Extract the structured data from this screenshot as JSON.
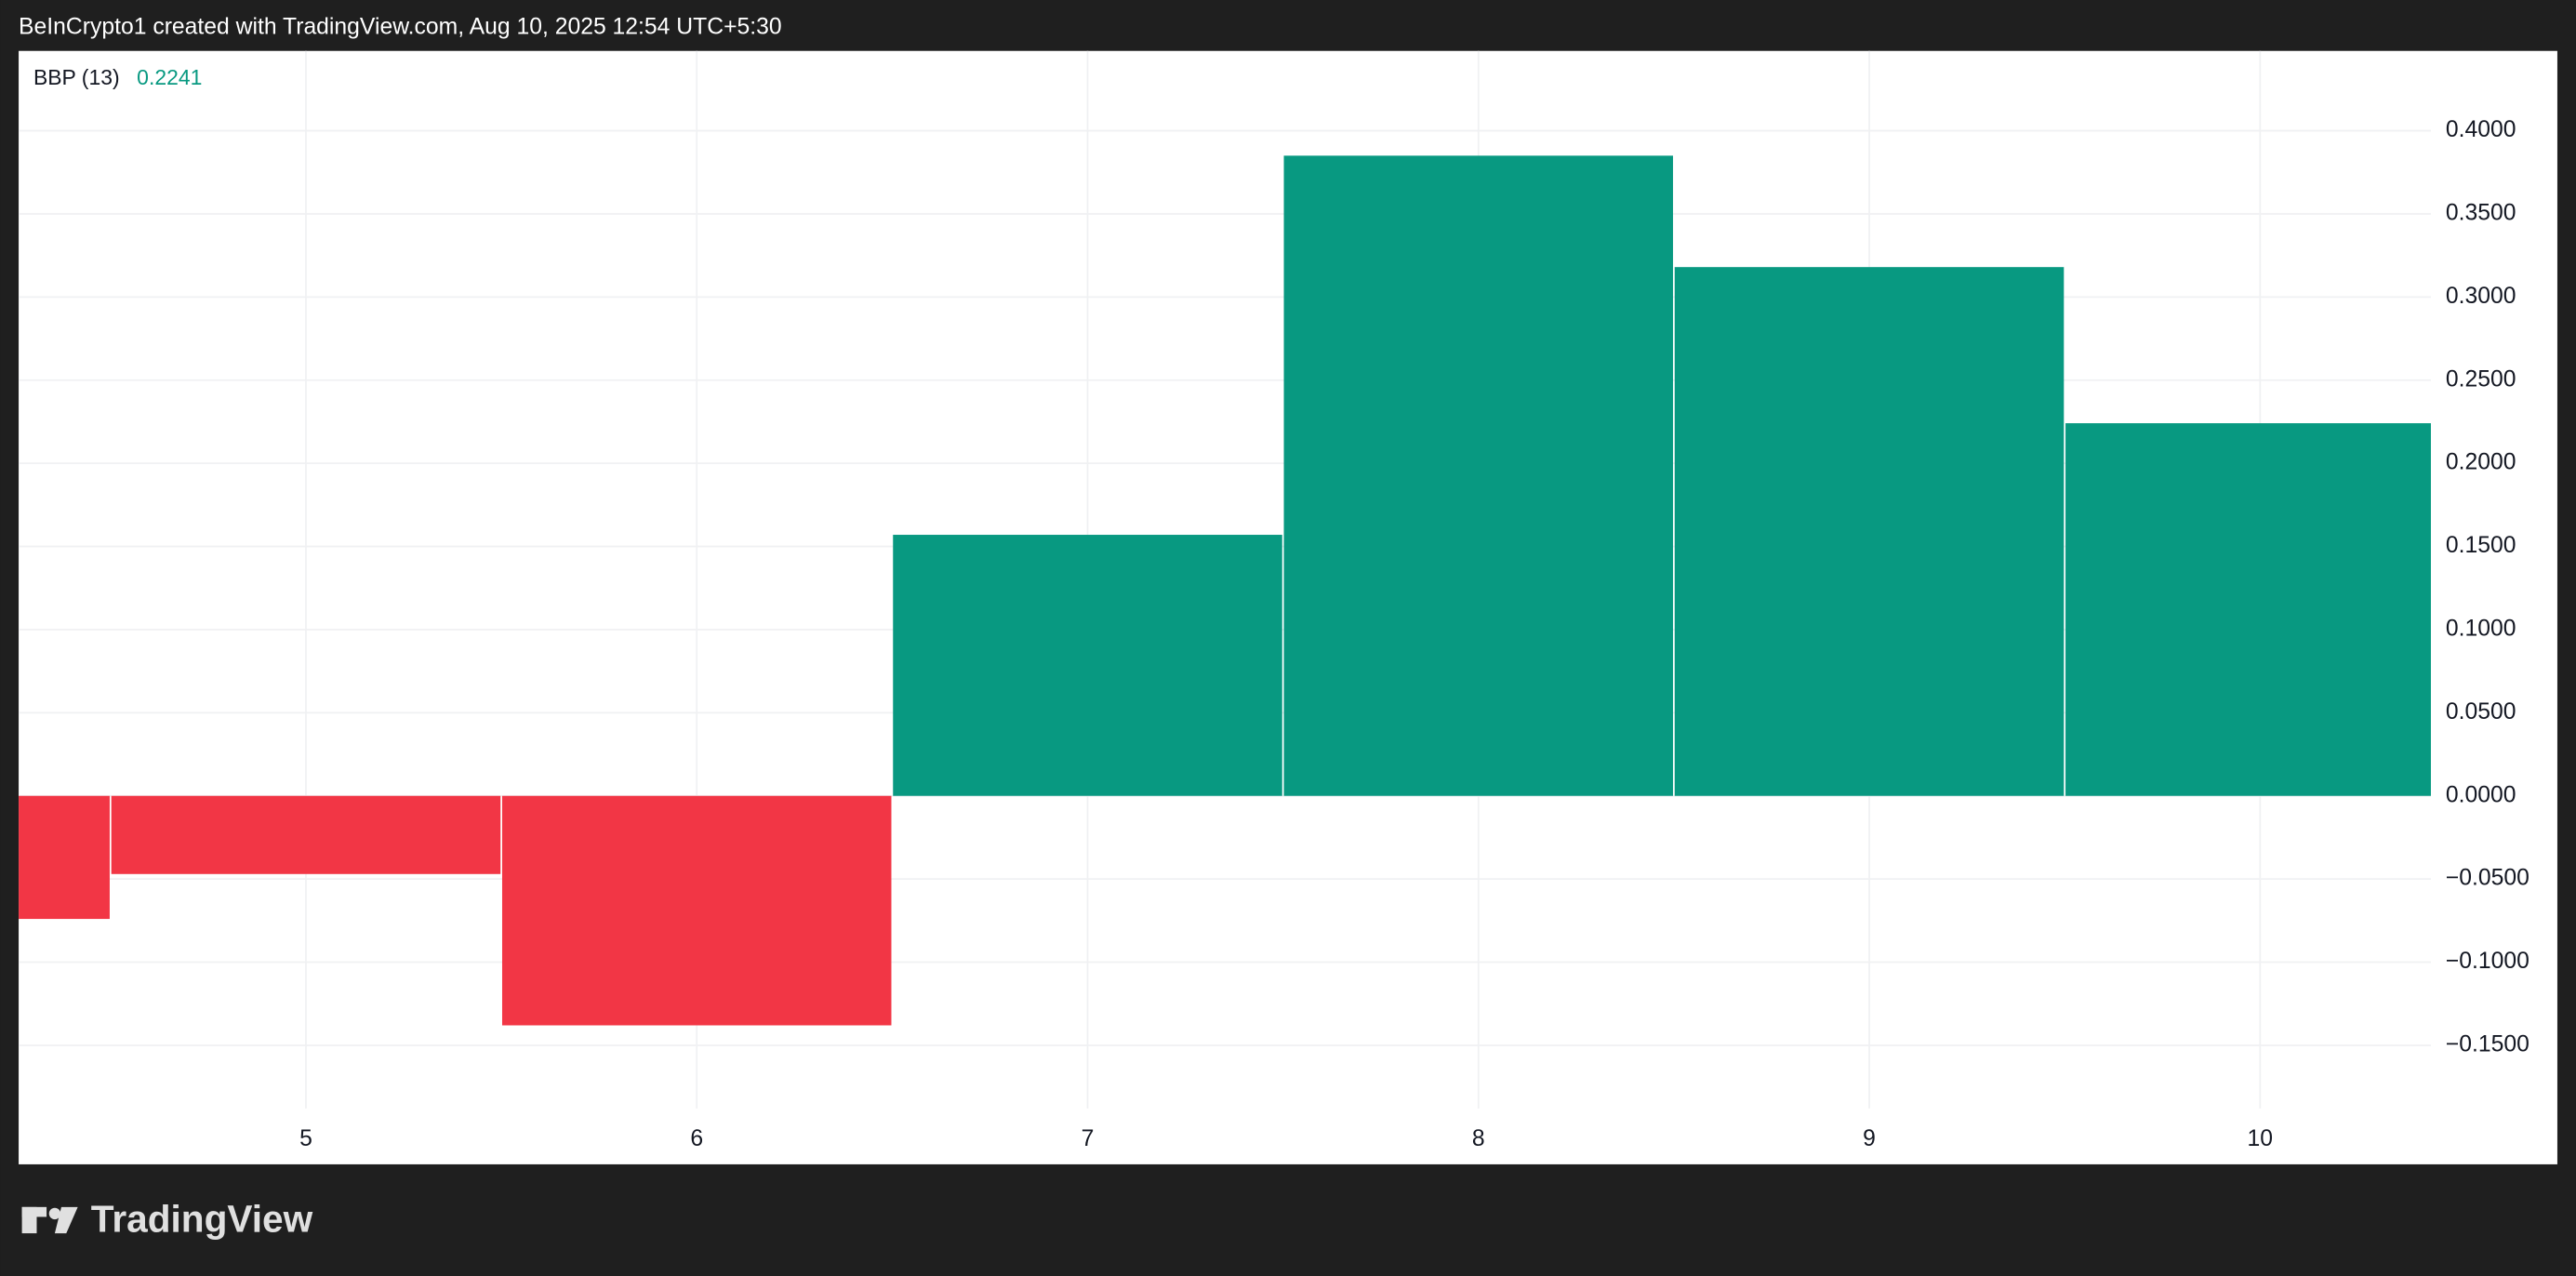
{
  "header": "BeInCrypto1 created with TradingView.com, Aug 10, 2025 12:54 UTC+5:30",
  "footer_logo": "TradingView",
  "chart_data": {
    "type": "bar",
    "x": [
      4,
      5,
      6,
      7,
      8,
      9,
      10
    ],
    "series": [
      {
        "name": "BBP (13)",
        "values": [
          -0.074,
          -0.047,
          -0.138,
          0.157,
          0.385,
          0.318,
          0.2241
        ]
      }
    ],
    "colors": {
      "positive": "#089981",
      "negative": "#f23645"
    },
    "xlim": [
      4.265,
      10.437
    ],
    "xticks": [
      5,
      6,
      7,
      8,
      9,
      10
    ],
    "ylim": [
      -0.188,
      0.448
    ],
    "yticks": [
      {
        "value": -0.15,
        "label": "−0.1500"
      },
      {
        "value": -0.1,
        "label": "−0.1000"
      },
      {
        "value": -0.05,
        "label": "−0.0500"
      },
      {
        "value": 0,
        "label": "0.0000"
      },
      {
        "value": 0.05,
        "label": "0.0500"
      },
      {
        "value": 0.1,
        "label": "0.1000"
      },
      {
        "value": 0.15,
        "label": "0.1500"
      },
      {
        "value": 0.2,
        "label": "0.2000"
      },
      {
        "value": 0.25,
        "label": "0.2500"
      },
      {
        "value": 0.3,
        "label": "0.3000"
      },
      {
        "value": 0.35,
        "label": "0.3500"
      },
      {
        "value": 0.4,
        "label": "0.4000"
      }
    ],
    "grid": true
  }
}
